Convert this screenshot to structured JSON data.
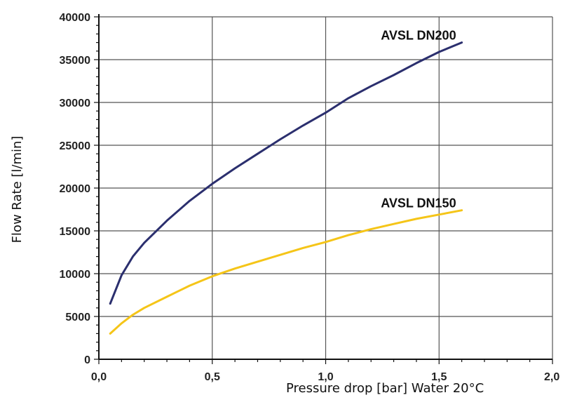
{
  "chart_data": {
    "type": "line",
    "xlabel": "Pressure drop [bar] Water 20°C",
    "ylabel": "Flow Rate [l/min]",
    "xlim": [
      0,
      2
    ],
    "ylim": [
      0,
      40000
    ],
    "x_ticks": [
      0,
      0.5,
      1.0,
      1.5,
      2.0
    ],
    "x_tick_labels": [
      "0,0",
      "0,5",
      "1,0",
      "1,5",
      "2,0"
    ],
    "y_ticks": [
      0,
      5000,
      10000,
      15000,
      20000,
      25000,
      30000,
      35000,
      40000
    ],
    "y_tick_labels": [
      "0",
      "5000",
      "10000",
      "15000",
      "20000",
      "25000",
      "30000",
      "35000",
      "40000"
    ],
    "grid": true,
    "series": [
      {
        "name": "AVSL DN200",
        "color": "#2b2f6e",
        "x": [
          0.05,
          0.1,
          0.15,
          0.2,
          0.3,
          0.4,
          0.5,
          0.6,
          0.7,
          0.8,
          0.9,
          1.0,
          1.1,
          1.2,
          1.3,
          1.4,
          1.5,
          1.6
        ],
        "y": [
          6500,
          9800,
          12000,
          13600,
          16200,
          18500,
          20500,
          22300,
          24000,
          25700,
          27300,
          28800,
          30500,
          31900,
          33200,
          34600,
          35900,
          37000
        ]
      },
      {
        "name": "AVSL DN150",
        "color": "#f5c518",
        "x": [
          0.05,
          0.1,
          0.15,
          0.2,
          0.3,
          0.4,
          0.5,
          0.6,
          0.7,
          0.8,
          0.9,
          1.0,
          1.1,
          1.2,
          1.3,
          1.4,
          1.5,
          1.6
        ],
        "y": [
          3000,
          4200,
          5200,
          6000,
          7300,
          8600,
          9700,
          10600,
          11400,
          12200,
          13000,
          13700,
          14500,
          15200,
          15800,
          16400,
          16900,
          17400
        ]
      }
    ]
  }
}
